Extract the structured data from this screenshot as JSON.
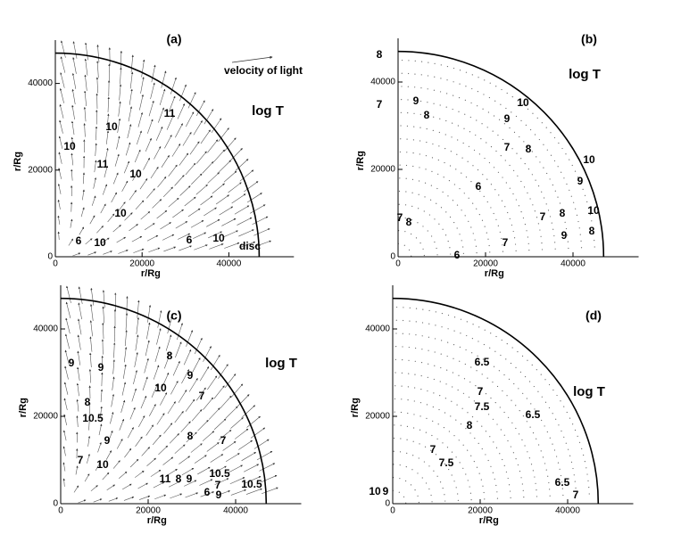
{
  "chart_data": [
    {
      "type": "contour",
      "title": "(a)",
      "label": "log T",
      "xlabel": "r/Rg",
      "ylabel": "r/Rg",
      "xlim": [
        0,
        55000
      ],
      "ylim": [
        0,
        50000
      ],
      "xticks": [
        0,
        20000,
        40000
      ],
      "yticks": [
        0,
        20000,
        40000
      ],
      "contour_labels": [
        10,
        11,
        10,
        11,
        10,
        10,
        6,
        10,
        6,
        10
      ],
      "annotations": [
        "velocity of light",
        "disc"
      ],
      "vectors": true
    },
    {
      "type": "contour",
      "title": "(b)",
      "label": "log T",
      "xlabel": "r/Rg",
      "ylabel": "r/Rg",
      "xlim": [
        0,
        55000
      ],
      "ylim": [
        0,
        50000
      ],
      "xticks": [
        0,
        20000,
        40000
      ],
      "yticks": [
        0,
        20000,
        40000
      ],
      "contour_labels": [
        8,
        7,
        9,
        8,
        10,
        9,
        7,
        8,
        10,
        9,
        6,
        7,
        8,
        10,
        9,
        8,
        7,
        7,
        8,
        6
      ],
      "vectors": false
    },
    {
      "type": "contour",
      "title": "(c)",
      "label": "log T",
      "xlabel": "r/Rg",
      "ylabel": "r/Rg",
      "xlim": [
        0,
        55000
      ],
      "ylim": [
        0,
        50000
      ],
      "xticks": [
        0,
        20000,
        40000
      ],
      "yticks": [
        0,
        20000,
        40000
      ],
      "contour_labels": [
        9,
        9,
        8,
        9,
        10,
        8,
        7,
        10.5,
        9,
        8,
        7,
        10.5,
        11,
        8,
        9,
        10.5,
        9,
        6,
        7,
        7,
        10
      ],
      "vectors": true
    },
    {
      "type": "contour",
      "title": "(d)",
      "label": "log T",
      "xlabel": "r/Rg",
      "ylabel": "r/Rg",
      "xlim": [
        0,
        55000
      ],
      "ylim": [
        0,
        50000
      ],
      "xticks": [
        0,
        20000,
        40000
      ],
      "yticks": [
        0,
        20000,
        40000
      ],
      "contour_labels": [
        6.5,
        7,
        7.5,
        8,
        6.5,
        7.5,
        7,
        6.5,
        7,
        10,
        9
      ],
      "vectors": false
    }
  ]
}
